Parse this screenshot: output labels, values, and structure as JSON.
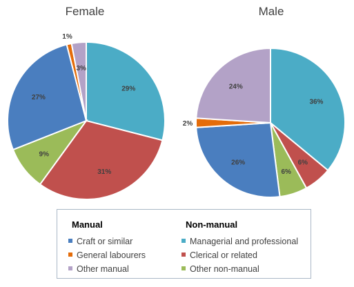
{
  "chart_data": [
    {
      "type": "pie",
      "title": "Female",
      "slices": [
        {
          "category": "Managerial and professional",
          "value": 29,
          "label": "29%"
        },
        {
          "category": "Clerical or related",
          "value": 31,
          "label": "31%"
        },
        {
          "category": "Other non-manual",
          "value": 9,
          "label": "9%"
        },
        {
          "category": "Craft or similar",
          "value": 27,
          "label": "27%"
        },
        {
          "category": "General labourers",
          "value": 1,
          "label": "1%"
        },
        {
          "category": "Other manual",
          "value": 3,
          "label": "3%"
        }
      ]
    },
    {
      "type": "pie",
      "title": "Male",
      "slices": [
        {
          "category": "Managerial and professional",
          "value": 36,
          "label": "36%"
        },
        {
          "category": "Clerical or related",
          "value": 6,
          "label": "6%"
        },
        {
          "category": "Other non-manual",
          "value": 6,
          "label": "6%"
        },
        {
          "category": "Craft or similar",
          "value": 26,
          "label": "26%"
        },
        {
          "category": "General labourers",
          "value": 2,
          "label": "2%"
        },
        {
          "category": "Other manual",
          "value": 24,
          "label": "24%"
        }
      ]
    }
  ],
  "colors": {
    "Craft or similar": "#4a7ebf",
    "General labourers": "#e46c0a",
    "Other manual": "#b3a2c7",
    "Managerial and professional": "#4bacc6",
    "Clerical or related": "#c0504d",
    "Other non-manual": "#9bbb59"
  },
  "legend": {
    "manual_heading": "Manual",
    "nonmanual_heading": "Non-manual",
    "manual_items": [
      "Craft or similar",
      "General labourers",
      "Other manual"
    ],
    "nonmanual_items": [
      "Managerial and professional",
      "Clerical or related",
      "Other non-manual"
    ]
  }
}
